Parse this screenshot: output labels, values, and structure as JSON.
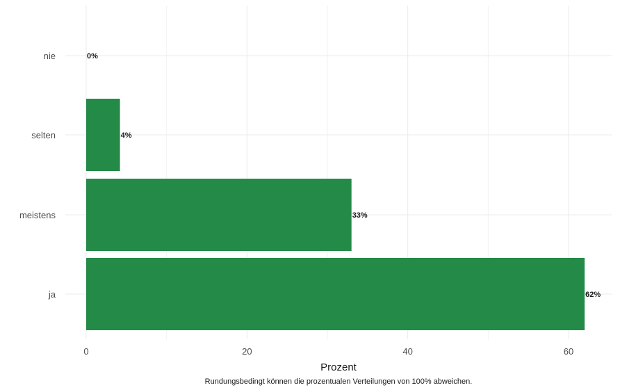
{
  "chart_data": {
    "type": "bar",
    "orientation": "horizontal",
    "categories": [
      "nie",
      "selten",
      "meistens",
      "ja"
    ],
    "values": [
      0,
      4.2,
      33,
      62
    ],
    "data_labels": [
      "0%",
      "4%",
      "33%",
      "62%"
    ],
    "xlabel": "Prozent",
    "ylabel": "",
    "xlim": [
      0,
      62
    ],
    "x_ticks": [
      0,
      20,
      40,
      60
    ],
    "x_tick_labels": [
      "0",
      "20",
      "40",
      "60"
    ],
    "grid": true,
    "legend": "none",
    "caption": "Rundungsbedingt können die prozentualen Verteilungen von 100% abweichen.",
    "colors": {
      "bar": "#248a47",
      "grid": "#ebebeb"
    }
  }
}
